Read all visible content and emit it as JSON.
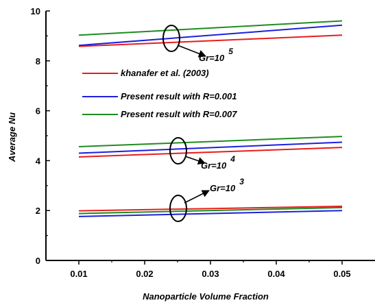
{
  "chart_data": {
    "type": "line",
    "xlabel": "Nanoparticle Volume Fraction",
    "ylabel": "Average Nu",
    "xlim": [
      0.005,
      0.055
    ],
    "ylim": [
      0,
      10
    ],
    "xticks": [
      "0.01",
      "0.02",
      "0.03",
      "0.04",
      "0.05"
    ],
    "yticks": [
      "0",
      "2",
      "4",
      "6",
      "8",
      "10"
    ],
    "x": [
      0.01,
      0.05
    ],
    "legend_position": "upper-middle",
    "legend": [
      {
        "series_key": "khanafer",
        "label": "khanafer et al. (2003)",
        "color": "#e81c1c"
      },
      {
        "series_key": "r0001",
        "label": "Present result with R=0.001",
        "color": "#1e1ee0"
      },
      {
        "series_key": "r0007",
        "label": "Present result with R=0.007",
        "color": "#1e8c1e"
      }
    ],
    "groups": [
      {
        "annotation_base": "Gr=10",
        "annotation_exp": "5",
        "series": [
          {
            "key": "khanafer",
            "values": [
              8.58,
              9.03
            ]
          },
          {
            "key": "r0001",
            "values": [
              8.62,
              9.43
            ]
          },
          {
            "key": "r0007",
            "values": [
              9.03,
              9.6
            ]
          }
        ]
      },
      {
        "annotation_base": "Gr=10",
        "annotation_exp": "4",
        "series": [
          {
            "key": "khanafer",
            "values": [
              4.15,
              4.53
            ]
          },
          {
            "key": "r0001",
            "values": [
              4.3,
              4.74
            ]
          },
          {
            "key": "r0007",
            "values": [
              4.56,
              4.97
            ]
          }
        ]
      },
      {
        "annotation_base": "Gr=10",
        "annotation_exp": "3",
        "series": [
          {
            "key": "khanafer",
            "values": [
              1.99,
              2.17
            ]
          },
          {
            "key": "r0001",
            "values": [
              1.76,
              2.0
            ]
          },
          {
            "key": "r0007",
            "values": [
              1.88,
              2.12
            ]
          }
        ]
      }
    ],
    "grid": false
  }
}
